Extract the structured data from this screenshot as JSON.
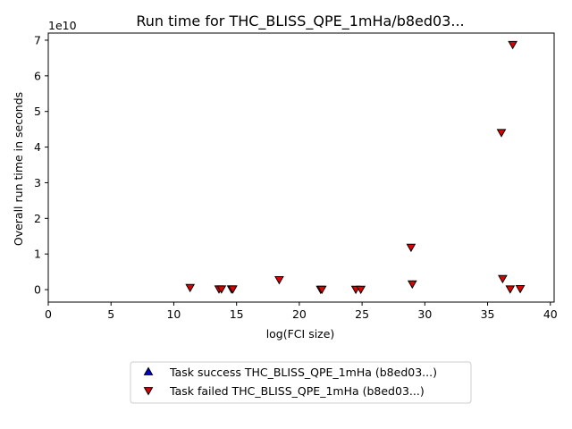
{
  "chart_data": {
    "type": "scatter",
    "title": "Run time for THC_BLISS_QPE_1mHa/b8ed03...",
    "xlabel": "log(FCI size)",
    "ylabel": "Overall run time in seconds",
    "y_scale_label": "1e10",
    "xlim": [
      0,
      40.3
    ],
    "ylim": [
      -0.35,
      7.2
    ],
    "x_ticks": [
      0,
      5,
      10,
      15,
      20,
      25,
      30,
      35,
      40
    ],
    "y_ticks": [
      0,
      1,
      2,
      3,
      4,
      5,
      6,
      7
    ],
    "grid": false,
    "legend_position": "below",
    "series": [
      {
        "name": "Task success THC_BLISS_QPE_1mHa (b8ed03...)",
        "marker": "triangle-up",
        "color": "#0000cc",
        "x": [],
        "y": []
      },
      {
        "name": "Task failed THC_BLISS_QPE_1mHa (b8ed03...)",
        "marker": "triangle-down",
        "color": "#dd0000",
        "x": [
          11.3,
          13.6,
          13.8,
          14.6,
          14.7,
          18.4,
          21.7,
          21.8,
          24.5,
          24.9,
          28.9,
          29.0,
          36.1,
          36.2,
          36.8,
          37.0,
          37.6
        ],
        "y": [
          0.06,
          0.02,
          0.02,
          0.02,
          0.02,
          0.28,
          0.01,
          0.01,
          0.01,
          0.01,
          1.19,
          0.16,
          4.41,
          0.31,
          0.02,
          6.88,
          0.03
        ]
      }
    ]
  }
}
